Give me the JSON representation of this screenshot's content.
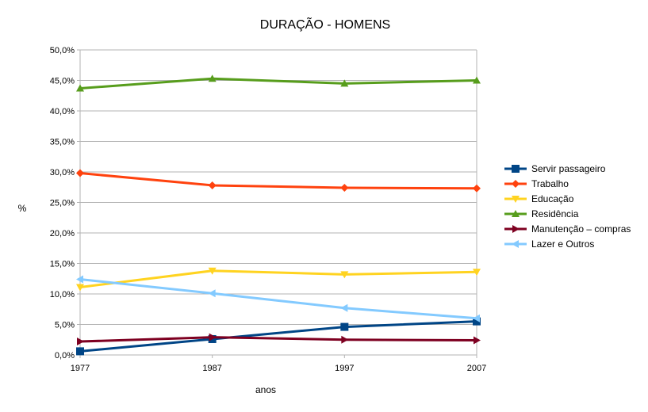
{
  "chart_data": {
    "type": "line",
    "title": "DURAÇÃO - HOMENS",
    "xlabel": "anos",
    "ylabel": "%",
    "x": [
      "1977",
      "1987",
      "1997",
      "2007"
    ],
    "ylim": [
      0,
      50
    ],
    "yticks": [
      "0,0%",
      "5,0%",
      "10,0%",
      "15,0%",
      "20,0%",
      "25,0%",
      "30,0%",
      "35,0%",
      "40,0%",
      "45,0%",
      "50,0%"
    ],
    "grid": "horizontal",
    "legend_position": "right",
    "series": [
      {
        "name": "Servir passageiro",
        "values": [
          0.6,
          2.6,
          4.6,
          5.5
        ],
        "color": "#004586",
        "marker": "square"
      },
      {
        "name": "Trabalho",
        "values": [
          29.8,
          27.8,
          27.4,
          27.3
        ],
        "color": "#ff420e",
        "marker": "diamond"
      },
      {
        "name": "Educação",
        "values": [
          11.1,
          13.8,
          13.2,
          13.6
        ],
        "color": "#ffd320",
        "marker": "triangle-down"
      },
      {
        "name": "Residência",
        "values": [
          43.7,
          45.3,
          44.5,
          45.0
        ],
        "color": "#579d1c",
        "marker": "triangle-up"
      },
      {
        "name": "Manutenção – compras",
        "values": [
          2.2,
          2.9,
          2.5,
          2.4
        ],
        "color": "#7e0021",
        "marker": "triangle-right"
      },
      {
        "name": "Lazer e Outros",
        "values": [
          12.4,
          10.1,
          7.7,
          6.0
        ],
        "color": "#83caff",
        "marker": "triangle-left"
      }
    ]
  }
}
